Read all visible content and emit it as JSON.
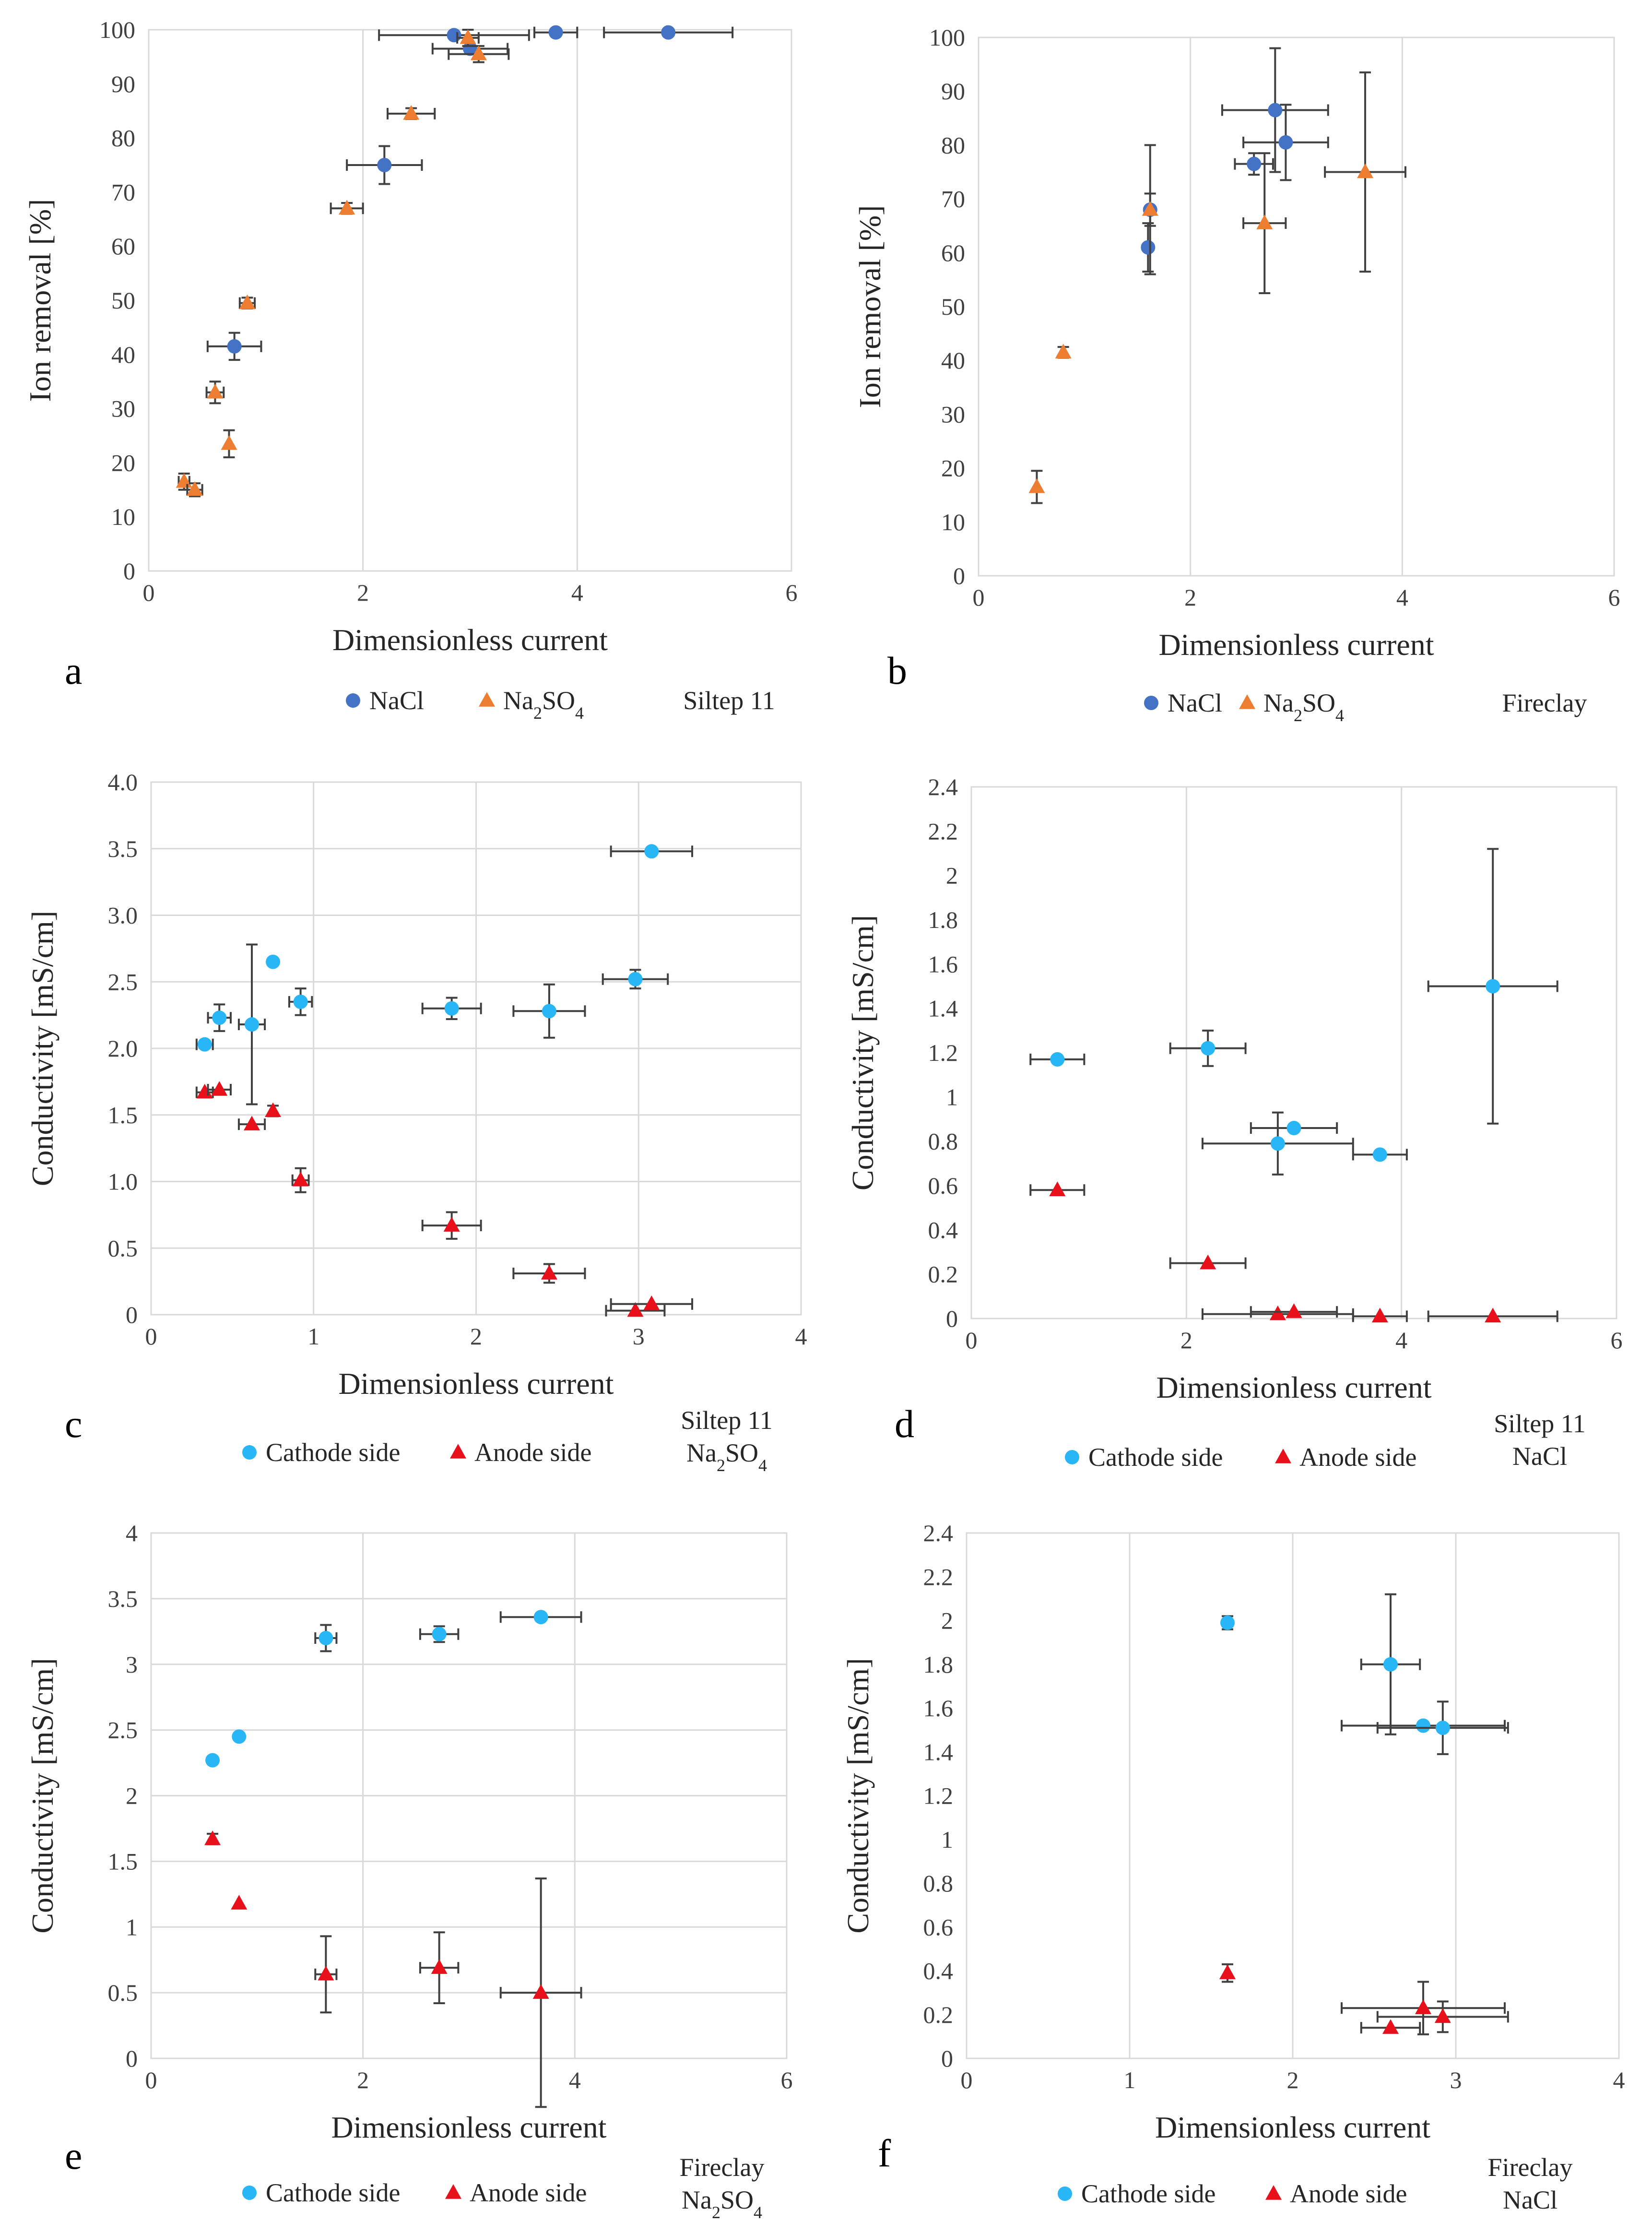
{
  "colors": {
    "nacl": "#4472c4",
    "na2so4": "#ed7d31",
    "cathode": "#29b6f6",
    "anode": "#e8101a",
    "grid": "#d9d9d9",
    "errorbar": "#404040"
  },
  "chart_data": [
    {
      "id": "a",
      "type": "scatter",
      "panel_label": "a",
      "caption": [
        "Siltep 11"
      ],
      "xlabel": "Dimensionless current",
      "ylabel": "Ion removal [%]",
      "xlim": [
        0,
        6
      ],
      "ylim": [
        0,
        100
      ],
      "xticks": [
        0,
        2,
        4,
        6
      ],
      "xtick_labels": [
        "0",
        "2",
        "4",
        "6"
      ],
      "yticks": [
        0,
        10,
        20,
        30,
        40,
        50,
        60,
        70,
        80,
        90,
        100
      ],
      "ytick_labels": [
        "0",
        "10",
        "20",
        "30",
        "40",
        "50",
        "60",
        "70",
        "80",
        "90",
        "100"
      ],
      "grid": "vertical",
      "legend": [
        "NaCl",
        "Na2SO4"
      ],
      "series": [
        {
          "name": "NaCl",
          "marker": "circle",
          "color": "#4472c4",
          "points": [
            {
              "x": 0.8,
              "y": 41.5,
              "xerr": 0.25,
              "yerr": 2.5
            },
            {
              "x": 2.2,
              "y": 75,
              "xerr": 0.35,
              "yerr": 3.5
            },
            {
              "x": 2.85,
              "y": 99,
              "xerr": 0.7,
              "yerr": 0
            },
            {
              "x": 3.0,
              "y": 96.5,
              "xerr": 0.35,
              "yerr": 0
            },
            {
              "x": 3.8,
              "y": 99.5,
              "xerr": 0.2,
              "yerr": 0
            },
            {
              "x": 4.85,
              "y": 99.5,
              "xerr": 0.6,
              "yerr": 0
            }
          ]
        },
        {
          "name": "Na2SO4",
          "marker": "triangle",
          "color": "#ed7d31",
          "points": [
            {
              "x": 0.33,
              "y": 16.5,
              "xerr": 0.05,
              "yerr": 1.5
            },
            {
              "x": 0.43,
              "y": 15,
              "xerr": 0.07,
              "yerr": 1.2
            },
            {
              "x": 0.62,
              "y": 33,
              "xerr": 0.08,
              "yerr": 2
            },
            {
              "x": 0.75,
              "y": 23.5,
              "xerr": 0,
              "yerr": 2.5
            },
            {
              "x": 0.92,
              "y": 49.5,
              "xerr": 0.07,
              "yerr": 1
            },
            {
              "x": 1.85,
              "y": 67,
              "xerr": 0.15,
              "yerr": 1
            },
            {
              "x": 2.45,
              "y": 84.5,
              "xerr": 0.22,
              "yerr": 1
            },
            {
              "x": 2.98,
              "y": 98.5,
              "xerr": 0.1,
              "yerr": 1.5
            },
            {
              "x": 3.08,
              "y": 95.5,
              "xerr": 0.28,
              "yerr": 1.5
            }
          ]
        }
      ]
    },
    {
      "id": "b",
      "type": "scatter",
      "panel_label": "b",
      "caption": [
        "Fireclay"
      ],
      "xlabel": "Dimensionless current",
      "ylabel": "Ion removal [%]",
      "xlim": [
        0,
        6
      ],
      "ylim": [
        0,
        100
      ],
      "xticks": [
        0,
        2,
        4,
        6
      ],
      "xtick_labels": [
        "0",
        "2",
        "4",
        "6"
      ],
      "yticks": [
        0,
        10,
        20,
        30,
        40,
        50,
        60,
        70,
        80,
        90,
        100
      ],
      "ytick_labels": [
        "0",
        "10",
        "20",
        "30",
        "40",
        "50",
        "60",
        "70",
        "80",
        "90",
        "100"
      ],
      "grid": "vertical",
      "legend": [
        "NaCl",
        "Na2SO4"
      ],
      "series": [
        {
          "name": "NaCl",
          "marker": "circle",
          "color": "#4472c4",
          "points": [
            {
              "x": 1.6,
              "y": 61,
              "xerr": 0,
              "yerr": 4.5
            },
            {
              "x": 2.6,
              "y": 76.5,
              "xerr": 0.18,
              "yerr": 2
            },
            {
              "x": 2.8,
              "y": 86.5,
              "xerr": 0.5,
              "yerr": 11.5
            },
            {
              "x": 2.9,
              "y": 80.5,
              "xerr": 0.4,
              "yerr": 7
            },
            {
              "x": 1.62,
              "y": 68,
              "xerr": 0,
              "yerr": 3
            }
          ]
        },
        {
          "name": "Na2SO4",
          "marker": "triangle",
          "color": "#ed7d31",
          "points": [
            {
              "x": 0.55,
              "y": 16.5,
              "xerr": 0,
              "yerr": 3
            },
            {
              "x": 0.8,
              "y": 41.5,
              "xerr": 0,
              "yerr": 1
            },
            {
              "x": 1.62,
              "y": 68,
              "xerr": 0,
              "yerr": 12
            },
            {
              "x": 2.7,
              "y": 65.5,
              "xerr": 0.2,
              "yerr": 13
            },
            {
              "x": 3.65,
              "y": 75,
              "xerr": 0.38,
              "yerr": 18.5
            }
          ]
        }
      ]
    },
    {
      "id": "c",
      "type": "scatter",
      "panel_label": "c",
      "caption": [
        "Siltep 11",
        "Na2SO4"
      ],
      "xlabel": "Dimensionless current",
      "ylabel": "Conductivity [mS/cm]",
      "xlim": [
        0,
        4
      ],
      "ylim": [
        0,
        4
      ],
      "xticks": [
        0,
        1,
        2,
        3,
        4
      ],
      "xtick_labels": [
        "0",
        "1",
        "2",
        "3",
        "4"
      ],
      "yticks": [
        0,
        0.5,
        1,
        1.5,
        2,
        2.5,
        3,
        3.5,
        4
      ],
      "ytick_labels": [
        "0",
        "0.5",
        "1.0",
        "1.5",
        "2.0",
        "2.5",
        "3.0",
        "3.5",
        "4.0"
      ],
      "grid": "both",
      "legend": [
        "Cathode side",
        "Anode side"
      ],
      "series": [
        {
          "name": "Cathode side",
          "marker": "circle",
          "color": "#29b6f6",
          "points": [
            {
              "x": 0.33,
              "y": 2.03,
              "xerr": 0.05,
              "yerr": 0
            },
            {
              "x": 0.42,
              "y": 2.23,
              "xerr": 0.07,
              "yerr": 0.1
            },
            {
              "x": 0.62,
              "y": 2.18,
              "xerr": 0.08,
              "yerr": 0.6
            },
            {
              "x": 0.75,
              "y": 2.65,
              "xerr": 0,
              "yerr": 0
            },
            {
              "x": 0.92,
              "y": 2.35,
              "xerr": 0.07,
              "yerr": 0.1
            },
            {
              "x": 1.85,
              "y": 2.3,
              "xerr": 0.18,
              "yerr": 0.08
            },
            {
              "x": 2.45,
              "y": 2.28,
              "xerr": 0.22,
              "yerr": 0.2
            },
            {
              "x": 2.98,
              "y": 2.52,
              "xerr": 0.2,
              "yerr": 0.07
            },
            {
              "x": 3.08,
              "y": 3.48,
              "xerr": 0.25,
              "yerr": 0
            }
          ]
        },
        {
          "name": "Anode side",
          "marker": "triangle",
          "color": "#e8101a",
          "points": [
            {
              "x": 0.33,
              "y": 1.67,
              "xerr": 0.05,
              "yerr": 0
            },
            {
              "x": 0.42,
              "y": 1.69,
              "xerr": 0.07,
              "yerr": 0
            },
            {
              "x": 0.62,
              "y": 1.43,
              "xerr": 0.08,
              "yerr": 0
            },
            {
              "x": 0.75,
              "y": 1.53,
              "xerr": 0,
              "yerr": 0.04
            },
            {
              "x": 0.92,
              "y": 1.01,
              "xerr": 0.05,
              "yerr": 0.09
            },
            {
              "x": 1.85,
              "y": 0.67,
              "xerr": 0.18,
              "yerr": 0.1
            },
            {
              "x": 2.45,
              "y": 0.31,
              "xerr": 0.22,
              "yerr": 0.07
            },
            {
              "x": 2.98,
              "y": 0.03,
              "xerr": 0.18,
              "yerr": 0
            },
            {
              "x": 3.08,
              "y": 0.08,
              "xerr": 0.25,
              "yerr": 0
            }
          ]
        }
      ]
    },
    {
      "id": "d",
      "type": "scatter",
      "panel_label": "d",
      "caption": [
        "Siltep 11",
        "NaCl"
      ],
      "xlabel": "Dimensionless current",
      "ylabel": "Conductivity [mS/cm]",
      "xlim": [
        0,
        6
      ],
      "ylim": [
        0,
        2.4
      ],
      "xticks": [
        0,
        2,
        4,
        6
      ],
      "xtick_labels": [
        "0",
        "2",
        "4",
        "6"
      ],
      "yticks": [
        0,
        0.2,
        0.4,
        0.6,
        0.8,
        1,
        1.2,
        1.4,
        1.6,
        1.8,
        2,
        2.2,
        2.4
      ],
      "ytick_labels": [
        "0",
        "0.2",
        "0.4",
        "0.6",
        "0.8",
        "1",
        "1.2",
        "1.4",
        "1.6",
        "1.8",
        "2",
        "2.2",
        "2.4"
      ],
      "grid": "vertical",
      "legend": [
        "Cathode side",
        "Anode side"
      ],
      "series": [
        {
          "name": "Cathode side",
          "marker": "circle",
          "color": "#29b6f6",
          "points": [
            {
              "x": 0.8,
              "y": 1.17,
              "xerr": 0.25,
              "yerr": 0
            },
            {
              "x": 2.2,
              "y": 1.22,
              "xerr": 0.35,
              "yerr": 0.08
            },
            {
              "x": 2.85,
              "y": 0.79,
              "xerr": 0.7,
              "yerr": 0.14
            },
            {
              "x": 3.0,
              "y": 0.86,
              "xerr": 0.4,
              "yerr": 0
            },
            {
              "x": 3.8,
              "y": 0.74,
              "xerr": 0.25,
              "yerr": 0
            },
            {
              "x": 4.85,
              "y": 1.5,
              "xerr": 0.6,
              "yerr": 0.62
            }
          ]
        },
        {
          "name": "Anode side",
          "marker": "triangle",
          "color": "#e8101a",
          "points": [
            {
              "x": 0.8,
              "y": 0.58,
              "xerr": 0.25,
              "yerr": 0
            },
            {
              "x": 2.2,
              "y": 0.25,
              "xerr": 0.35,
              "yerr": 0
            },
            {
              "x": 2.85,
              "y": 0.02,
              "xerr": 0.7,
              "yerr": 0
            },
            {
              "x": 3.0,
              "y": 0.03,
              "xerr": 0.4,
              "yerr": 0
            },
            {
              "x": 3.8,
              "y": 0.01,
              "xerr": 0.25,
              "yerr": 0
            },
            {
              "x": 4.85,
              "y": 0.01,
              "xerr": 0.6,
              "yerr": 0
            }
          ]
        }
      ]
    },
    {
      "id": "e",
      "type": "scatter",
      "panel_label": "e",
      "caption": [
        "Fireclay",
        "Na2SO4"
      ],
      "xlabel": "Dimensionless current",
      "ylabel": "Conductivity [mS/cm]",
      "xlim": [
        0,
        6
      ],
      "ylim": [
        0,
        4
      ],
      "xticks": [
        0,
        2,
        4,
        6
      ],
      "xtick_labels": [
        "0",
        "2",
        "4",
        "6"
      ],
      "yticks": [
        0,
        0.5,
        1,
        1.5,
        2,
        2.5,
        3,
        3.5,
        4
      ],
      "ytick_labels": [
        "0",
        "0.5",
        "1",
        "1.5",
        "2",
        "2.5",
        "3",
        "3.5",
        "4"
      ],
      "grid": "both",
      "legend": [
        "Cathode side",
        "Anode side"
      ],
      "series": [
        {
          "name": "Cathode side",
          "marker": "circle",
          "color": "#29b6f6",
          "points": [
            {
              "x": 0.58,
              "y": 2.27,
              "xerr": 0,
              "yerr": 0
            },
            {
              "x": 0.83,
              "y": 2.45,
              "xerr": 0,
              "yerr": 0
            },
            {
              "x": 1.65,
              "y": 3.2,
              "xerr": 0.1,
              "yerr": 0.1
            },
            {
              "x": 2.72,
              "y": 3.23,
              "xerr": 0.18,
              "yerr": 0.06
            },
            {
              "x": 3.68,
              "y": 3.36,
              "xerr": 0.38,
              "yerr": 0
            }
          ]
        },
        {
          "name": "Anode side",
          "marker": "triangle",
          "color": "#e8101a",
          "points": [
            {
              "x": 0.58,
              "y": 1.67,
              "xerr": 0,
              "yerr": 0.04
            },
            {
              "x": 0.83,
              "y": 1.18,
              "xerr": 0,
              "yerr": 0
            },
            {
              "x": 1.65,
              "y": 0.64,
              "xerr": 0.1,
              "yerr": 0.29
            },
            {
              "x": 2.72,
              "y": 0.69,
              "xerr": 0.18,
              "yerr": 0.27
            },
            {
              "x": 3.68,
              "y": 0.5,
              "xerr": 0.38,
              "yerr": 0.87
            }
          ]
        }
      ]
    },
    {
      "id": "f",
      "type": "scatter",
      "panel_label": "f",
      "caption": [
        "Fireclay",
        "NaCl"
      ],
      "xlabel": "Dimensionless current",
      "ylabel": "Conductivity [mS/cm]",
      "xlim": [
        0,
        4
      ],
      "ylim": [
        0,
        2.4
      ],
      "xticks": [
        0,
        1,
        2,
        3,
        4
      ],
      "xtick_labels": [
        "0",
        "1",
        "2",
        "3",
        "4"
      ],
      "yticks": [
        0,
        0.2,
        0.4,
        0.6,
        0.8,
        1,
        1.2,
        1.4,
        1.6,
        1.8,
        2,
        2.2,
        2.4
      ],
      "ytick_labels": [
        "0",
        "0.2",
        "0.4",
        "0.6",
        "0.8",
        "1",
        "1.2",
        "1.4",
        "1.6",
        "1.8",
        "2",
        "2.2",
        "2.4"
      ],
      "grid": "vertical",
      "legend": [
        "Cathode side",
        "Anode side"
      ],
      "series": [
        {
          "name": "Cathode side",
          "marker": "circle",
          "color": "#29b6f6",
          "points": [
            {
              "x": 1.6,
              "y": 1.99,
              "xerr": 0,
              "yerr": 0.03
            },
            {
              "x": 2.6,
              "y": 1.8,
              "xerr": 0.18,
              "yerr": 0.32
            },
            {
              "x": 2.8,
              "y": 1.52,
              "xerr": 0.5,
              "yerr": 0
            },
            {
              "x": 2.92,
              "y": 1.51,
              "xerr": 0.4,
              "yerr": 0.12
            }
          ]
        },
        {
          "name": "Anode side",
          "marker": "triangle",
          "color": "#e8101a",
          "points": [
            {
              "x": 1.6,
              "y": 0.39,
              "xerr": 0,
              "yerr": 0.04
            },
            {
              "x": 2.6,
              "y": 0.14,
              "xerr": 0.18,
              "yerr": 0
            },
            {
              "x": 2.8,
              "y": 0.23,
              "xerr": 0.5,
              "yerr": 0.12
            },
            {
              "x": 2.92,
              "y": 0.19,
              "xerr": 0.4,
              "yerr": 0.07
            }
          ]
        }
      ]
    }
  ]
}
